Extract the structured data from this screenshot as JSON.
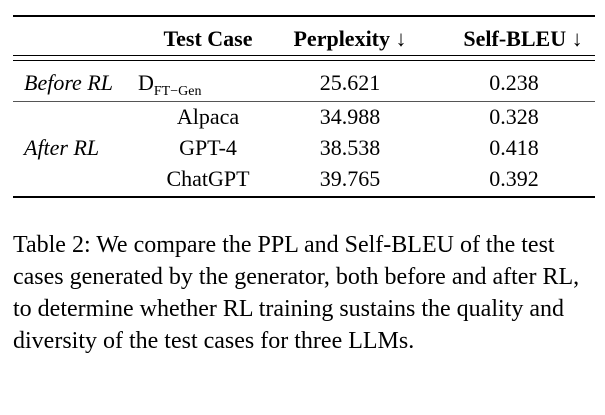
{
  "table": {
    "headers": [
      "",
      "Test Case",
      "Perplexity ↓",
      "Self-BLEU ↓"
    ],
    "groups": [
      {
        "label": "Before RL",
        "rows": [
          {
            "case_main": "D",
            "case_sub": "FT−Gen",
            "perplexity": "25.621",
            "self_bleu": "0.238"
          }
        ]
      },
      {
        "label": "After RL",
        "rows": [
          {
            "case": "Alpaca",
            "perplexity": "34.988",
            "self_bleu": "0.328"
          },
          {
            "case": "GPT-4",
            "perplexity": "38.538",
            "self_bleu": "0.418"
          },
          {
            "case": "ChatGPT",
            "perplexity": "39.765",
            "self_bleu": "0.392"
          }
        ]
      }
    ]
  },
  "caption": "Table 2: We compare the PPL and Self-BLEU of the test cases generated by the generator, both before and after RL, to determine whether RL training sustains the quality and diversity of the test cases for three LLMs."
}
